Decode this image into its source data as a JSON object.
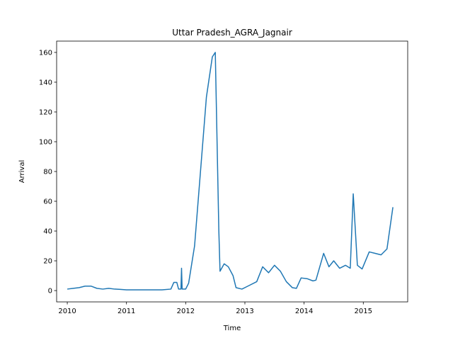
{
  "chart_data": {
    "type": "line",
    "title": "Uttar Pradesh_AGRA_Jagnair",
    "x_label": "Time",
    "y_label": "Arrival",
    "x": [
      2010.0,
      2010.1,
      2010.2,
      2010.3,
      2010.4,
      2010.5,
      2010.6,
      2010.7,
      2010.8,
      2010.9,
      2011.0,
      2011.3,
      2011.6,
      2011.75,
      2011.8,
      2011.85,
      2011.88,
      2011.92,
      2011.93,
      2011.94,
      2012.0,
      2012.05,
      2012.15,
      2012.25,
      2012.35,
      2012.45,
      2012.5,
      2012.52,
      2012.56,
      2012.58,
      2012.65,
      2012.72,
      2012.8,
      2012.85,
      2012.95,
      2013.05,
      2013.2,
      2013.3,
      2013.4,
      2013.5,
      2013.6,
      2013.7,
      2013.8,
      2013.87,
      2013.95,
      2014.05,
      2014.15,
      2014.2,
      2014.33,
      2014.42,
      2014.5,
      2014.6,
      2014.7,
      2014.78,
      2014.83,
      2014.9,
      2014.98,
      2015.1,
      2015.2,
      2015.3,
      2015.4,
      2015.5
    ],
    "series": [
      {
        "name": "Arrival",
        "color": "#1f77b4",
        "values": [
          1,
          1.5,
          2,
          3,
          3,
          1.5,
          1,
          1.5,
          1,
          0.8,
          0.5,
          0.5,
          0.5,
          1,
          5.5,
          5.5,
          1,
          1,
          15,
          1,
          1,
          5,
          30,
          80,
          130,
          157,
          160,
          120,
          40,
          13,
          18,
          16,
          10,
          2,
          1,
          3,
          6,
          16,
          12,
          17,
          13,
          6,
          2,
          1.5,
          8.5,
          8,
          6.5,
          7,
          25,
          16,
          20,
          15,
          17,
          15,
          65,
          17,
          14.5,
          26,
          25,
          24,
          28,
          56
        ]
      }
    ],
    "xlim": [
      2009.82,
      2015.75
    ],
    "xticks": [
      2010,
      2011,
      2012,
      2013,
      2014,
      2015
    ],
    "ylim": [
      -7.6,
      167.6
    ],
    "yticks": [
      0,
      20,
      40,
      60,
      80,
      100,
      120,
      140,
      160
    ]
  }
}
